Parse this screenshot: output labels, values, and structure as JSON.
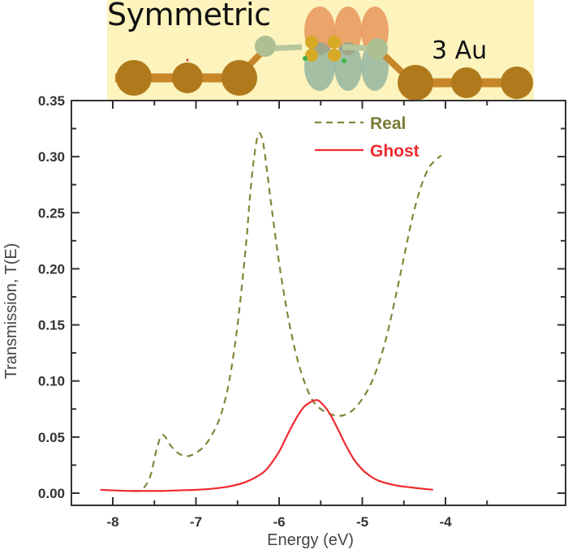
{
  "inset": {
    "title": "Symmetric",
    "label": "3 Au",
    "background": "#fcf3bd"
  },
  "chart_data": {
    "type": "line",
    "title": "",
    "xlabel": "Energy (eV)",
    "ylabel": "Transmission, T(E)",
    "xlim": [
      -8.5,
      -3.5
    ],
    "ylim": [
      -0.015,
      0.35
    ],
    "x_ticks": [
      "-8",
      "-7",
      "-6",
      "-5",
      "-4"
    ],
    "y_ticks": [
      "0.00",
      "0.05",
      "0.10",
      "0.15",
      "0.20",
      "0.25",
      "0.30",
      "0.35"
    ],
    "grid": false,
    "legend_position": "upper center",
    "series": [
      {
        "name": "Real",
        "style": "dashed",
        "color": "#85853a",
        "x": [
          -7.75,
          -7.65,
          -7.55,
          -7.47,
          -7.4,
          -7.3,
          -7.2,
          -7.1,
          -7.0,
          -6.9,
          -6.8,
          -6.7,
          -6.6,
          -6.5,
          -6.4,
          -6.35,
          -6.3,
          -6.25,
          -6.2,
          -6.15,
          -6.1,
          -6.0,
          -5.9,
          -5.8,
          -5.7,
          -5.6,
          -5.5,
          -5.4,
          -5.3,
          -5.2,
          -5.1,
          -5.0,
          -4.9,
          -4.8,
          -4.7,
          -4.6,
          -4.5,
          -4.4,
          -4.3,
          -4.2,
          -4.1,
          -4.05
        ],
        "y": [
          0.002,
          0.003,
          0.015,
          0.04,
          0.052,
          0.042,
          0.035,
          0.033,
          0.036,
          0.042,
          0.053,
          0.07,
          0.1,
          0.15,
          0.22,
          0.265,
          0.3,
          0.32,
          0.315,
          0.29,
          0.26,
          0.205,
          0.16,
          0.125,
          0.1,
          0.083,
          0.075,
          0.071,
          0.069,
          0.07,
          0.075,
          0.084,
          0.097,
          0.116,
          0.142,
          0.175,
          0.21,
          0.245,
          0.272,
          0.29,
          0.298,
          0.301
        ]
      },
      {
        "name": "Ghost",
        "style": "solid",
        "color": "#ee2a2f",
        "x": [
          -8.15,
          -8.0,
          -7.8,
          -7.6,
          -7.4,
          -7.2,
          -7.0,
          -6.8,
          -6.6,
          -6.4,
          -6.2,
          -6.1,
          -6.0,
          -5.9,
          -5.8,
          -5.7,
          -5.6,
          -5.55,
          -5.5,
          -5.4,
          -5.3,
          -5.2,
          -5.1,
          -5.0,
          -4.9,
          -4.8,
          -4.6,
          -4.4,
          -4.15
        ],
        "y": [
          0.003,
          0.0025,
          0.002,
          0.002,
          0.002,
          0.0025,
          0.003,
          0.004,
          0.006,
          0.01,
          0.018,
          0.026,
          0.037,
          0.052,
          0.066,
          0.077,
          0.082,
          0.083,
          0.081,
          0.072,
          0.058,
          0.043,
          0.03,
          0.021,
          0.015,
          0.011,
          0.007,
          0.005,
          0.003
        ]
      }
    ]
  }
}
